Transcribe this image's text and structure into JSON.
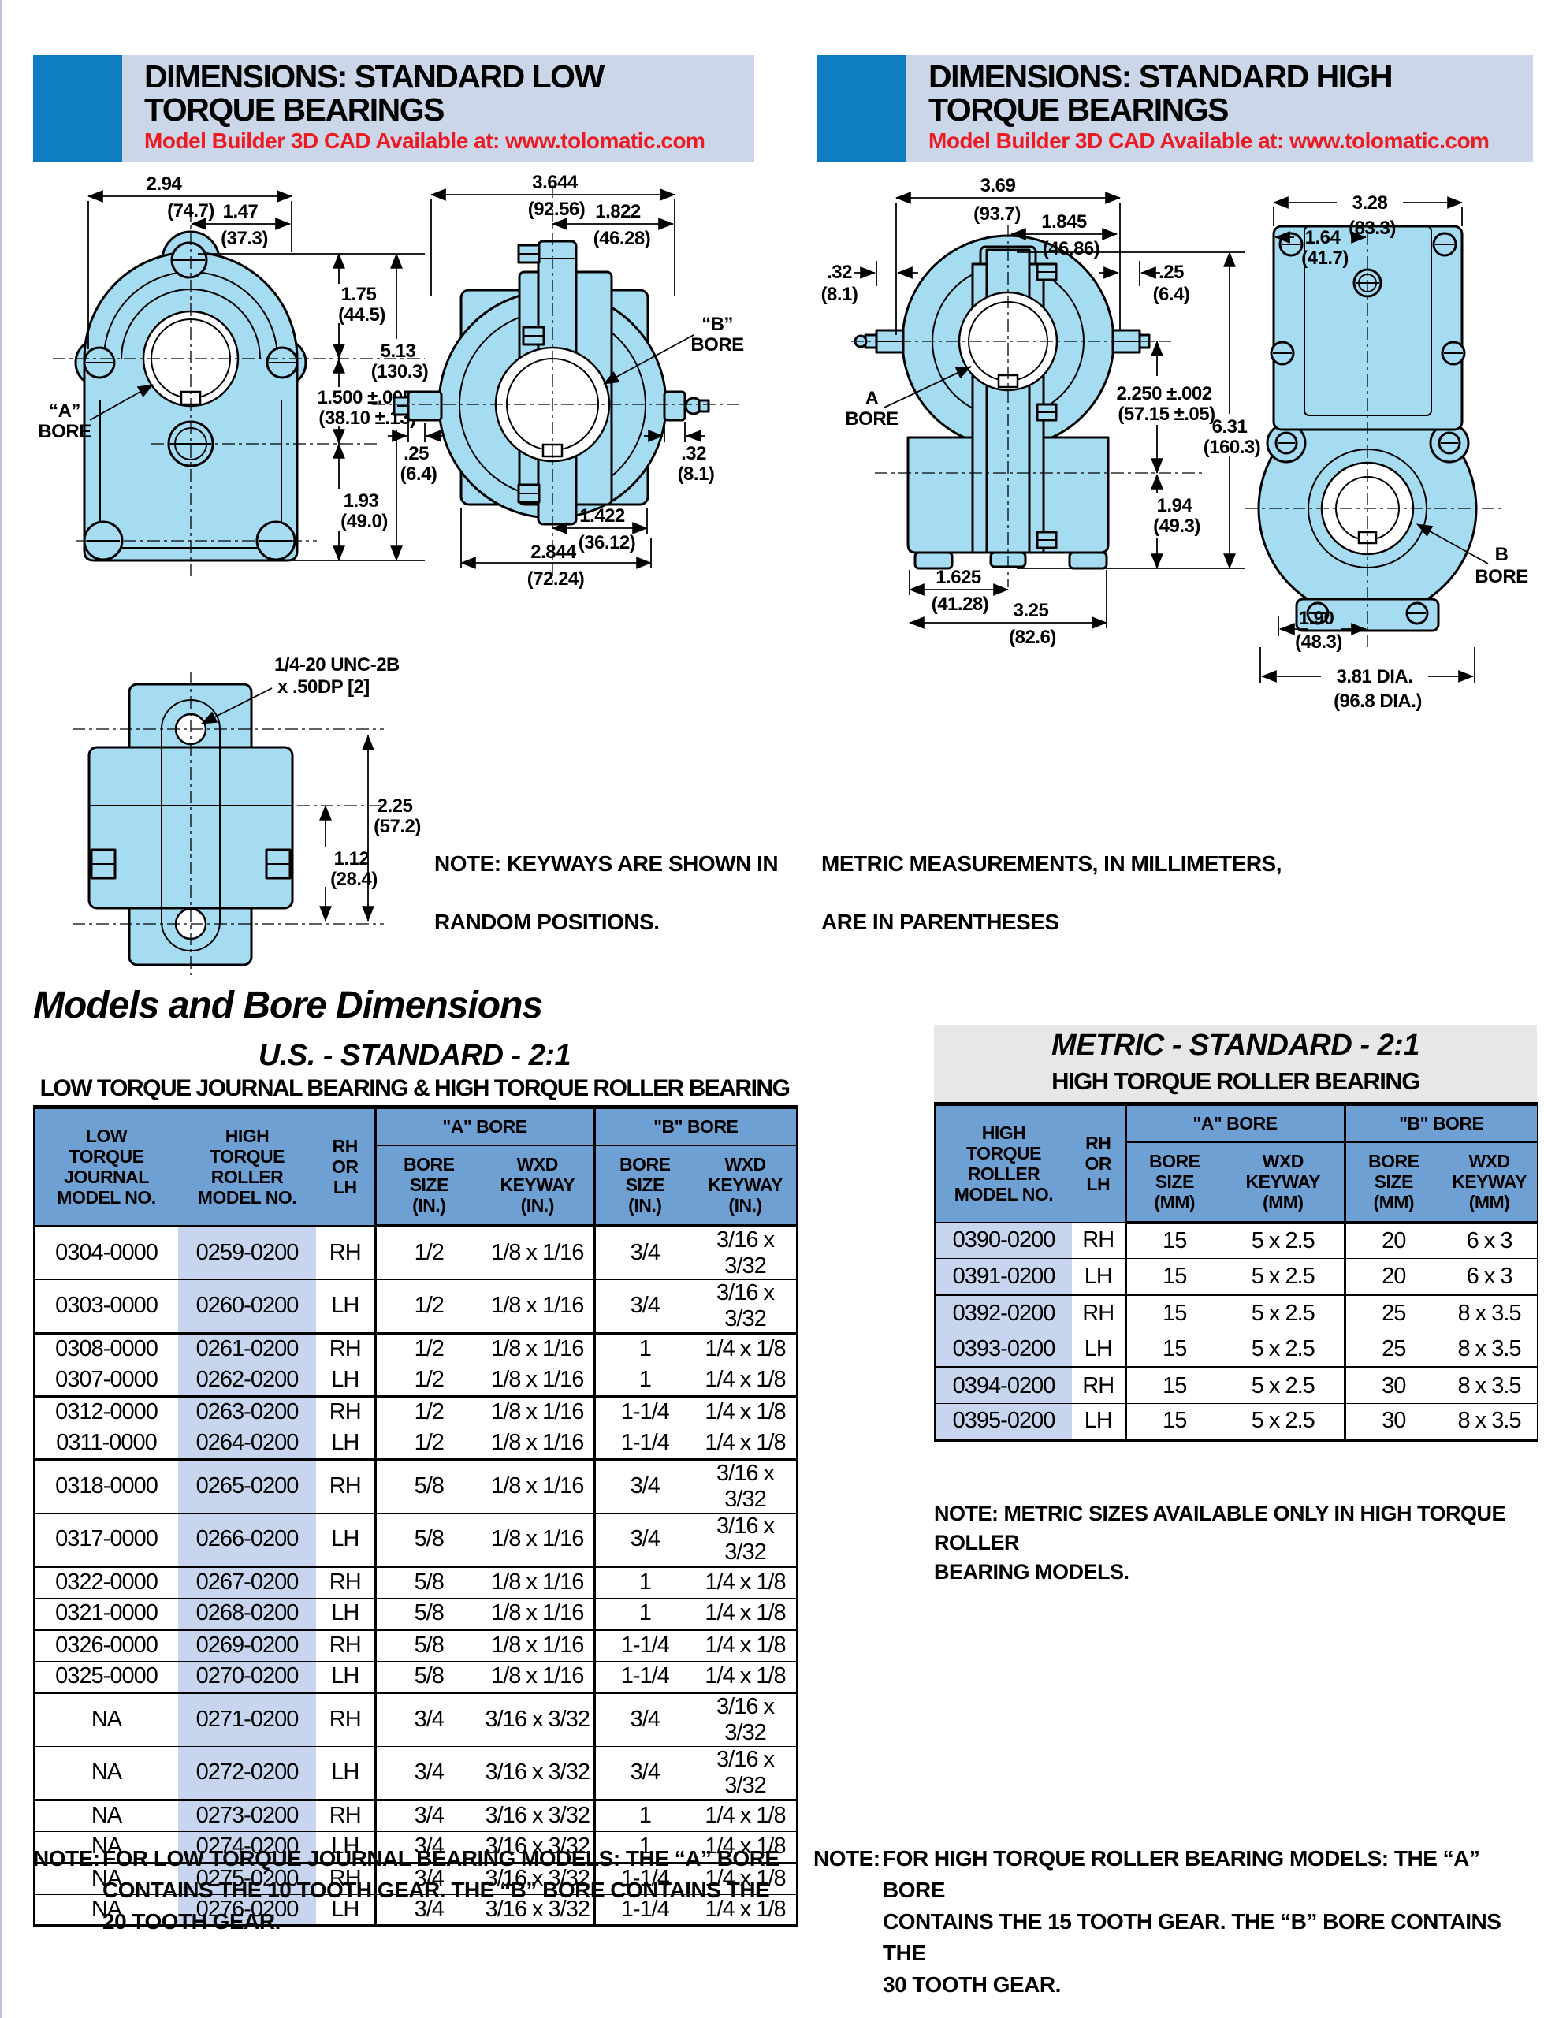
{
  "colors": {
    "accent_blue": "#0f7ec0",
    "banner_bg": "#ccd6e9",
    "red": "#ec1b23",
    "table_header_blue": "#6fa0d4",
    "row_shade": "#c7d6ee",
    "drawing_fill": "#a6dcf2",
    "gray_box": "#e6e7e8"
  },
  "header_left": {
    "line1": "DIMENSIONS: STANDARD LOW",
    "line2": "TORQUE BEARINGS",
    "sub": "Model Builder 3D CAD Available at: www.tolomatic.com"
  },
  "header_right": {
    "line1": "DIMENSIONS: STANDARD HIGH",
    "line2": "TORQUE BEARINGS",
    "sub": "Model Builder 3D CAD Available at: www.tolomatic.com"
  },
  "drawings": {
    "lf_294": "2.94",
    "lf_294m": "(74.7)",
    "lf_147": "1.47",
    "lf_147m": "(37.3)",
    "lf_175": "1.75",
    "lf_175m": "(44.5)",
    "lf_513": "5.13",
    "lf_513m": "(130.3)",
    "lf_15": "1.500 ±.005",
    "lf_15m": "(38.10 ±.13)",
    "lf_193": "1.93",
    "lf_193m": "(49.0)",
    "lf_abore1": "“A”",
    "lf_abore2": "BORE",
    "ls_3644": "3.644",
    "ls_3644m": "(92.56)",
    "ls_1822": "1.822",
    "ls_1822m": "(46.28)",
    "ls_bbore1": "“B”",
    "ls_bbore2": "BORE",
    "ls_25": ".25",
    "ls_25m": "(6.4)",
    "ls_32": ".32",
    "ls_32m": "(8.1)",
    "ls_1422": "1.422",
    "ls_1422m": "(36.12)",
    "ls_2844": "2.844",
    "ls_2844m": "(72.24)",
    "lb_thread1": "1/4-20 UNC-2B",
    "lb_thread2": "x .50DP [2]",
    "lb_225": "2.25",
    "lb_225m": "(57.2)",
    "lb_112": "1.12",
    "lb_112m": "(28.4)",
    "hf_369": "3.69",
    "hf_369m": "(93.7)",
    "hf_1845": "1.845",
    "hf_1845m": "(46.86)",
    "hf_32": ".32",
    "hf_32m": "(8.1)",
    "hf_25": ".25",
    "hf_25m": "(6.4)",
    "hf_abore1": "A",
    "hf_abore2": "BORE",
    "hf_225": "2.250 ±.002",
    "hf_225m": "(57.15 ±.05)",
    "hf_631": "6.31",
    "hf_631m": "(160.3)",
    "hf_194": "1.94",
    "hf_194m": "(49.3)",
    "hf_1625": "1.625",
    "hf_1625m": "(41.28)",
    "hf_325": "3.25",
    "hf_325m": "(82.6)",
    "hs_328": "3.28",
    "hs_328m": "(83.3)",
    "hs_164": "1.64",
    "hs_164m": "(41.7)",
    "hs_b1": "B",
    "hs_b2": "BORE",
    "hs_190": "1.90",
    "hs_190m": "(48.3)",
    "hs_381": "3.81 DIA.",
    "hs_381m": "(96.8 DIA.)"
  },
  "notes": {
    "keyways1": "NOTE: KEYWAYS ARE SHOWN IN",
    "keyways2": "RANDOM POSITIONS.",
    "metric_meas1": "METRIC MEASUREMENTS, IN MILLIMETERS,",
    "metric_meas2": "ARE IN PARENTHESES",
    "metric_only": "NOTE: METRIC SIZES AVAILABLE ONLY IN HIGH TORQUE ROLLER\nBEARING MODELS.",
    "low_label": "NOTE:",
    "low_text": "FOR LOW TORQUE JOURNAL BEARING MODELS: THE “A” BORE\nCONTAINS THE 10 TOOTH GEAR.  THE “B” BORE CONTAINS THE\n20 TOOTH GEAR.",
    "high_label": "NOTE:",
    "high_text": "FOR HIGH TORQUE ROLLER BEARING MODELS: THE “A” BORE\nCONTAINS THE 15 TOOTH GEAR.  THE “B” BORE CONTAINS THE\n30 TOOTH GEAR."
  },
  "section_title": "Models and Bore Dimensions",
  "us_table": {
    "title": "U.S. - STANDARD  - 2:1",
    "subtitle": "LOW TORQUE JOURNAL BEARING & HIGH TORQUE ROLLER BEARING",
    "h_low": "LOW\nTORQUE\nJOURNAL\nMODEL NO.",
    "h_high": "HIGH\nTORQUE\nROLLER\nMODEL NO.",
    "h_rh": "RH\nOR\nLH",
    "h_abore": "\"A\" BORE",
    "h_bbore": "\"B\" BORE",
    "h_size": "BORE\nSIZE\n(IN.)",
    "h_keyway": "WXD\nKEYWAY\n(IN.)",
    "rows": [
      [
        "0304-0000",
        "0259-0200",
        "RH",
        "1/2",
        "1/8 x 1/16",
        "3/4",
        "3/16 x 3/32"
      ],
      [
        "0303-0000",
        "0260-0200",
        "LH",
        "1/2",
        "1/8 x 1/16",
        "3/4",
        "3/16 x 3/32"
      ],
      [
        "0308-0000",
        "0261-0200",
        "RH",
        "1/2",
        "1/8 x 1/16",
        "1",
        "1/4 x 1/8"
      ],
      [
        "0307-0000",
        "0262-0200",
        "LH",
        "1/2",
        "1/8 x 1/16",
        "1",
        "1/4 x 1/8"
      ],
      [
        "0312-0000",
        "0263-0200",
        "RH",
        "1/2",
        "1/8 x 1/16",
        "1-1/4",
        "1/4 x 1/8"
      ],
      [
        "0311-0000",
        "0264-0200",
        "LH",
        "1/2",
        "1/8 x 1/16",
        "1-1/4",
        "1/4 x 1/8"
      ],
      [
        "0318-0000",
        "0265-0200",
        "RH",
        "5/8",
        "1/8 x 1/16",
        "3/4",
        "3/16 x 3/32"
      ],
      [
        "0317-0000",
        "0266-0200",
        "LH",
        "5/8",
        "1/8 x 1/16",
        "3/4",
        "3/16 x 3/32"
      ],
      [
        "0322-0000",
        "0267-0200",
        "RH",
        "5/8",
        "1/8 x 1/16",
        "1",
        "1/4 x 1/8"
      ],
      [
        "0321-0000",
        "0268-0200",
        "LH",
        "5/8",
        "1/8 x 1/16",
        "1",
        "1/4 x 1/8"
      ],
      [
        "0326-0000",
        "0269-0200",
        "RH",
        "5/8",
        "1/8 x 1/16",
        "1-1/4",
        "1/4 x 1/8"
      ],
      [
        "0325-0000",
        "0270-0200",
        "LH",
        "5/8",
        "1/8 x 1/16",
        "1-1/4",
        "1/4 x 1/8"
      ],
      [
        "NA",
        "0271-0200",
        "RH",
        "3/4",
        "3/16 x 3/32",
        "3/4",
        "3/16 x 3/32"
      ],
      [
        "NA",
        "0272-0200",
        "LH",
        "3/4",
        "3/16 x 3/32",
        "3/4",
        "3/16 x 3/32"
      ],
      [
        "NA",
        "0273-0200",
        "RH",
        "3/4",
        "3/16 x 3/32",
        "1",
        "1/4 x 1/8"
      ],
      [
        "NA",
        "0274-0200",
        "LH",
        "3/4",
        "3/16 x 3/32",
        "1",
        "1/4 x 1/8"
      ],
      [
        "NA",
        "0275-0200",
        "RH",
        "3/4",
        "3/16 x 3/32",
        "1-1/4",
        "1/4 x 1/8"
      ],
      [
        "NA",
        "0276-0200",
        "LH",
        "3/4",
        "3/16 x 3/32",
        "1-1/4",
        "1/4 x 1/8"
      ]
    ]
  },
  "metric_table": {
    "title": "METRIC - STANDARD - 2:1",
    "subtitle": "HIGH TORQUE ROLLER BEARING",
    "h_high": "HIGH\nTORQUE\nROLLER\nMODEL NO.",
    "h_rh": "RH\nOR\nLH",
    "h_abore": "\"A\" BORE",
    "h_bbore": "\"B\" BORE",
    "h_size": "BORE\nSIZE\n(MM)",
    "h_keyway": "WXD\nKEYWAY\n(MM)",
    "rows": [
      [
        "0390-0200",
        "RH",
        "15",
        "5 x 2.5",
        "20",
        "6 x 3"
      ],
      [
        "0391-0200",
        "LH",
        "15",
        "5 x 2.5",
        "20",
        "6 x 3"
      ],
      [
        "0392-0200",
        "RH",
        "15",
        "5 x 2.5",
        "25",
        "8 x 3.5"
      ],
      [
        "0393-0200",
        "LH",
        "15",
        "5 x 2.5",
        "25",
        "8 x 3.5"
      ],
      [
        "0394-0200",
        "RH",
        "15",
        "5 x 2.5",
        "30",
        "8 x 3.5"
      ],
      [
        "0395-0200",
        "LH",
        "15",
        "5 x 2.5",
        "30",
        "8 x 3.5"
      ]
    ]
  }
}
